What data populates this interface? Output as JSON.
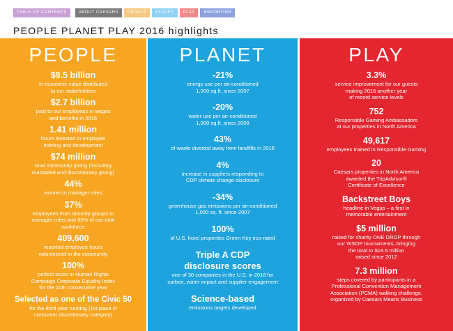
{
  "nav": {
    "tabs": [
      "TABLE OF CONTENTS",
      "ABOUT CAESARS",
      "PEOPLE",
      "PLANET",
      "PLAY",
      "REPORTING"
    ]
  },
  "headline": "PEOPLE PLANET PLAY 2016 highlights",
  "colors": {
    "people": "#f6a623",
    "planet": "#1ea3dd",
    "play": "#e3262f"
  },
  "people": {
    "title": "PEOPLE",
    "stats": [
      {
        "value": "$9.5 billion",
        "desc": [
          "in economic value distributed",
          "to our stakeholders"
        ]
      },
      {
        "value": "$2.7 billion",
        "desc": [
          "paid to our employees in wages",
          "and benefits in 2016"
        ]
      },
      {
        "value": "1.41 million",
        "desc": [
          "hours invested in employee",
          "training and development"
        ]
      },
      {
        "value": "$74 million",
        "desc": [
          "total community giving (including",
          "mandated and discretionary giving)"
        ]
      },
      {
        "value": "44%",
        "desc": [
          "women in manager roles"
        ]
      },
      {
        "value": "37%",
        "desc": [
          "employees from minority groups in",
          "manager roles and 60% of our total",
          "workforce"
        ]
      },
      {
        "value": "409,600",
        "desc": [
          "reported employee hours",
          "volunteered in the community"
        ]
      },
      {
        "value": "100%",
        "desc": [
          "perfect score in Human Rights",
          "Campaign Corporate Equality Index",
          "for the 10th consecutive year"
        ]
      },
      {
        "value": "Selected as one of the Civic 50",
        "desc": [
          "for the third year running (1st place in",
          "consumer discretionary category)"
        ]
      }
    ]
  },
  "planet": {
    "title": "PLANET",
    "stats": [
      {
        "value": "-21%",
        "desc": [
          "energy use per air-conditioned",
          "1,000 sq.ft. since 2007"
        ]
      },
      {
        "value": "-20%",
        "desc": [
          "water use per air-conditioned",
          "1,000 sq.ft. since 2008"
        ]
      },
      {
        "value": "43%",
        "desc": [
          "of waste diverted away from landfills in 2016"
        ]
      },
      {
        "value": "4%",
        "desc": [
          "increase in suppliers responding to",
          "CDP climate change disclosure"
        ]
      },
      {
        "value": "-34%",
        "desc": [
          "greenhouse gas emissions per air-conditioned",
          "1,000 sq. ft. since 2007"
        ]
      },
      {
        "value": "100%",
        "desc": [
          "of U.S. hotel properties Green Key eco-rated"
        ]
      },
      {
        "value": "Triple A CDP disclosure scores",
        "desc": [
          "one of 30 companies in the U.S. in 2016 for",
          "carbon, water impact and supplier engagement"
        ]
      },
      {
        "value": "Science-based",
        "desc": [
          "emissions targets developed"
        ]
      }
    ]
  },
  "play": {
    "title": "PLAY",
    "stats": [
      {
        "value": "3.3%",
        "desc": [
          "service improvement for our guests",
          "making 2016 another year",
          "of record service levels"
        ]
      },
      {
        "value": "752",
        "desc": [
          "Responsible Gaming Ambassadors",
          "at our properties in North America"
        ]
      },
      {
        "value": "49,617",
        "desc": [
          "employees trained in Responsible Gaming"
        ]
      },
      {
        "value": "20",
        "desc": [
          "Caesars properties in North America",
          "awarded the TripAdvisor® ",
          "Certificate of Excellence"
        ]
      },
      {
        "value": "Backstreet Boys",
        "desc": [
          "headline in Vegas – a first in",
          "memorable entertainment"
        ]
      },
      {
        "value": "$5 million",
        "desc": [
          "raised for charity ONE DROP through",
          "our WSOP tournaments, bringing",
          "the total to $18.5 million",
          "raised since 2012"
        ]
      },
      {
        "value": "7.3 million",
        "desc": [
          "steps covered by participants in a",
          "Professional Convention Management",
          "Association (PCMA) walking challenge,",
          "organized by Caesars Means Business"
        ]
      }
    ]
  }
}
